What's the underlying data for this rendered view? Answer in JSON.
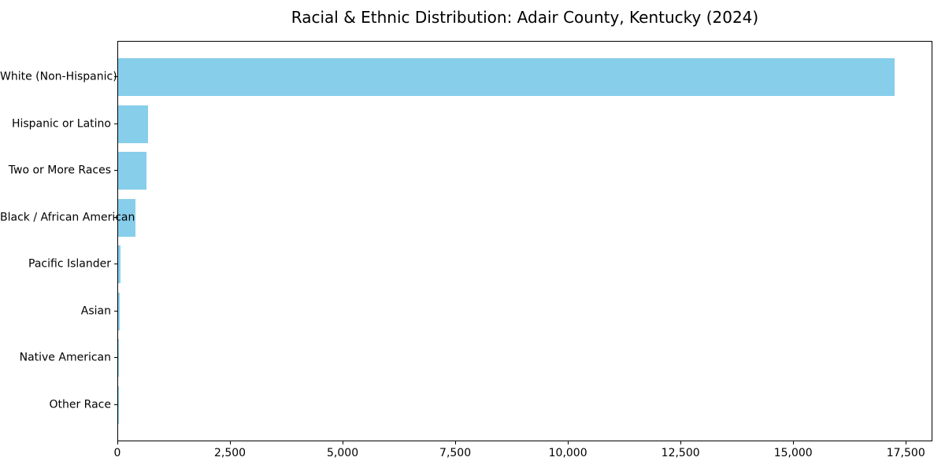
{
  "chart_data": {
    "type": "bar",
    "orientation": "horizontal",
    "title": "Racial & Ethnic Distribution: Adair County, Kentucky (2024)",
    "categories": [
      "White (Non-Hispanic)",
      "Hispanic or Latino",
      "Two or More Races",
      "Black / African American",
      "Pacific Islander",
      "Asian",
      "Native American",
      "Other Race"
    ],
    "values": [
      17230,
      660,
      635,
      380,
      50,
      40,
      15,
      5
    ],
    "bar_color": "#87CEEB",
    "xlim": [
      0,
      18090
    ],
    "xticks": [
      0,
      2500,
      5000,
      7500,
      10000,
      12500,
      15000,
      17500
    ],
    "xtick_labels": [
      "0",
      "2,500",
      "5,000",
      "7,500",
      "10,000",
      "12,500",
      "15,000",
      "17,500"
    ],
    "xlabel": "",
    "ylabel": "",
    "grid": false,
    "legend_position": "none",
    "text_color": "#000000",
    "spine_color": "#000000"
  }
}
